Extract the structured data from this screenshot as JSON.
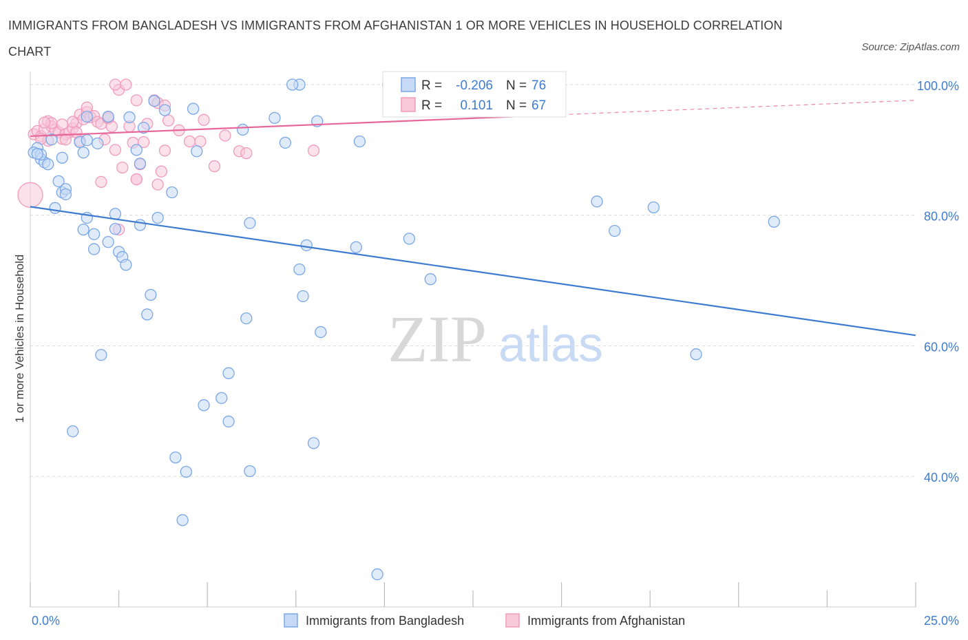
{
  "title": "IMMIGRANTS FROM BANGLADESH VS IMMIGRANTS FROM AFGHANISTAN 1 OR MORE VEHICLES IN HOUSEHOLD CORRELATION CHART",
  "source": "Source: ZipAtlas.com",
  "watermark": {
    "zip": "ZIP",
    "atlas": "atlas"
  },
  "colors": {
    "blue": "#3d7bd1",
    "blue_fill": "#c6daf5",
    "blue_stroke": "#7aa6e6",
    "pink": "#e8679a",
    "pink_fill": "#f8c9d8",
    "pink_stroke": "#f09bbb",
    "grid": "#d9d9d9",
    "axis_text": "#3d7bd1"
  },
  "stats": [
    {
      "r_label": "R =",
      "r": "-0.206",
      "n_label": "N =",
      "n": "76",
      "series": "Immigrants from Bangladesh"
    },
    {
      "r_label": "R =",
      "r": "0.101",
      "n_label": "N =",
      "n": "67",
      "series": "Immigrants from Afghanistan"
    }
  ],
  "chart_data": {
    "type": "scatter",
    "xlabel": "",
    "ylabel": "1 or more Vehicles in Household",
    "xlim": [
      0,
      25
    ],
    "ylim": [
      20,
      102
    ],
    "x_tick_labels": [
      "0.0%",
      "25.0%"
    ],
    "y_ticks": [
      40,
      60,
      80,
      100
    ],
    "y_tick_labels": [
      "40.0%",
      "60.0%",
      "80.0%",
      "100.0%"
    ],
    "grid": "horizontal dashed",
    "legend": "bottom-center",
    "series": [
      {
        "name": "Immigrants from Bangladesh",
        "trend": {
          "x": [
            0,
            25
          ],
          "y": [
            81.3,
            61.6
          ]
        },
        "points": [
          [
            0.2,
            90.3
          ],
          [
            0.1,
            89.6
          ],
          [
            0.3,
            88.6
          ],
          [
            0.4,
            88.1
          ],
          [
            0.5,
            87.8
          ],
          [
            0.8,
            85.2
          ],
          [
            0.9,
            83.5
          ],
          [
            1.0,
            84.0
          ],
          [
            0.7,
            81.1
          ],
          [
            0.6,
            91.6
          ],
          [
            0.3,
            89.3
          ],
          [
            0.9,
            88.8
          ],
          [
            1.4,
            91.2
          ],
          [
            1.5,
            89.6
          ],
          [
            1.6,
            95.1
          ],
          [
            1.9,
            91.0
          ],
          [
            2.2,
            95.1
          ],
          [
            2.8,
            95.0
          ],
          [
            3.0,
            90.0
          ],
          [
            3.1,
            87.9
          ],
          [
            3.2,
            93.4
          ],
          [
            3.5,
            97.5
          ],
          [
            3.8,
            96.1
          ],
          [
            4.6,
            96.3
          ],
          [
            4.7,
            89.8
          ],
          [
            6.0,
            93.1
          ],
          [
            6.9,
            94.9
          ],
          [
            7.2,
            91.1
          ],
          [
            7.6,
            100.0
          ],
          [
            7.4,
            100.0
          ],
          [
            8.1,
            94.4
          ],
          [
            9.3,
            91.3
          ],
          [
            2.4,
            80.2
          ],
          [
            3.1,
            78.5
          ],
          [
            3.6,
            79.6
          ],
          [
            4.0,
            83.5
          ],
          [
            1.6,
            79.6
          ],
          [
            1.5,
            77.8
          ],
          [
            1.8,
            77.1
          ],
          [
            2.2,
            75.9
          ],
          [
            1.8,
            74.8
          ],
          [
            2.5,
            74.4
          ],
          [
            2.6,
            73.6
          ],
          [
            2.7,
            72.4
          ],
          [
            2.4,
            77.9
          ],
          [
            6.2,
            78.8
          ],
          [
            7.8,
            75.4
          ],
          [
            9.2,
            75.1
          ],
          [
            10.7,
            76.4
          ],
          [
            7.6,
            71.7
          ],
          [
            11.3,
            70.2
          ],
          [
            7.7,
            67.6
          ],
          [
            3.4,
            67.8
          ],
          [
            3.3,
            64.8
          ],
          [
            6.1,
            64.2
          ],
          [
            8.2,
            62.1
          ],
          [
            2.0,
            58.6
          ],
          [
            5.6,
            55.8
          ],
          [
            5.4,
            52.0
          ],
          [
            4.9,
            50.9
          ],
          [
            5.6,
            48.4
          ],
          [
            8.0,
            45.1
          ],
          [
            1.2,
            46.9
          ],
          [
            4.1,
            42.9
          ],
          [
            4.4,
            40.7
          ],
          [
            6.2,
            40.8
          ],
          [
            4.3,
            33.3
          ],
          [
            9.8,
            25.0
          ],
          [
            16.0,
            82.1
          ],
          [
            17.6,
            81.2
          ],
          [
            16.5,
            77.6
          ],
          [
            21.0,
            79.0
          ],
          [
            18.8,
            58.7
          ],
          [
            0.2,
            89.4
          ],
          [
            1.0,
            83.2
          ],
          [
            1.6,
            91.5
          ]
        ]
      },
      {
        "name": "Immigrants from Afghanistan",
        "trend": {
          "x": [
            0,
            25
          ],
          "y": [
            92.1,
            97.6
          ]
        },
        "trend_solid_until_x": 15,
        "points": [
          [
            0.0,
            83.1
          ],
          [
            0.1,
            92.4
          ],
          [
            0.2,
            92.9
          ],
          [
            0.3,
            92.1
          ],
          [
            0.4,
            93.2
          ],
          [
            0.5,
            91.4
          ],
          [
            0.5,
            94.4
          ],
          [
            0.6,
            93.6
          ],
          [
            0.7,
            93.1
          ],
          [
            0.8,
            92.7
          ],
          [
            0.9,
            93.9
          ],
          [
            1.0,
            92.4
          ],
          [
            1.1,
            92.7
          ],
          [
            1.2,
            93.3
          ],
          [
            1.3,
            94.1
          ],
          [
            1.4,
            91.4
          ],
          [
            1.4,
            95.4
          ],
          [
            1.5,
            94.7
          ],
          [
            1.6,
            95.8
          ],
          [
            1.7,
            95.0
          ],
          [
            1.8,
            95.2
          ],
          [
            1.9,
            94.3
          ],
          [
            2.0,
            94.0
          ],
          [
            2.1,
            91.6
          ],
          [
            2.2,
            94.8
          ],
          [
            2.4,
            90.0
          ],
          [
            2.5,
            99.2
          ],
          [
            2.6,
            87.3
          ],
          [
            2.8,
            93.6
          ],
          [
            2.9,
            91.1
          ],
          [
            3.0,
            85.5
          ],
          [
            3.1,
            87.8
          ],
          [
            3.2,
            91.2
          ],
          [
            3.3,
            94.0
          ],
          [
            3.5,
            97.6
          ],
          [
            3.6,
            84.7
          ],
          [
            3.7,
            86.7
          ],
          [
            3.8,
            89.9
          ],
          [
            3.9,
            94.5
          ],
          [
            4.2,
            93.0
          ],
          [
            4.5,
            91.3
          ],
          [
            4.9,
            94.6
          ],
          [
            5.2,
            87.5
          ],
          [
            5.5,
            92.2
          ],
          [
            5.9,
            89.8
          ],
          [
            6.1,
            89.5
          ],
          [
            8.0,
            89.9
          ],
          [
            10.1,
            100.0
          ],
          [
            1.6,
            96.5
          ],
          [
            2.4,
            100.0
          ],
          [
            2.7,
            100.0
          ],
          [
            3.0,
            97.6
          ],
          [
            3.6,
            97.2
          ],
          [
            2.3,
            93.6
          ],
          [
            1.3,
            92.7
          ],
          [
            0.9,
            91.7
          ],
          [
            0.3,
            91.7
          ],
          [
            2.0,
            85.1
          ],
          [
            2.5,
            77.8
          ],
          [
            3.0,
            85.5
          ],
          [
            3.8,
            96.8
          ],
          [
            0.6,
            94.1
          ],
          [
            1.2,
            94.3
          ],
          [
            1.0,
            91.6
          ],
          [
            0.4,
            94.2
          ],
          [
            4.8,
            91.3
          ],
          [
            2.2,
            95.0
          ]
        ]
      }
    ]
  },
  "legend_bottom": [
    {
      "label": "Immigrants from Bangladesh"
    },
    {
      "label": "Immigrants from Afghanistan"
    }
  ]
}
